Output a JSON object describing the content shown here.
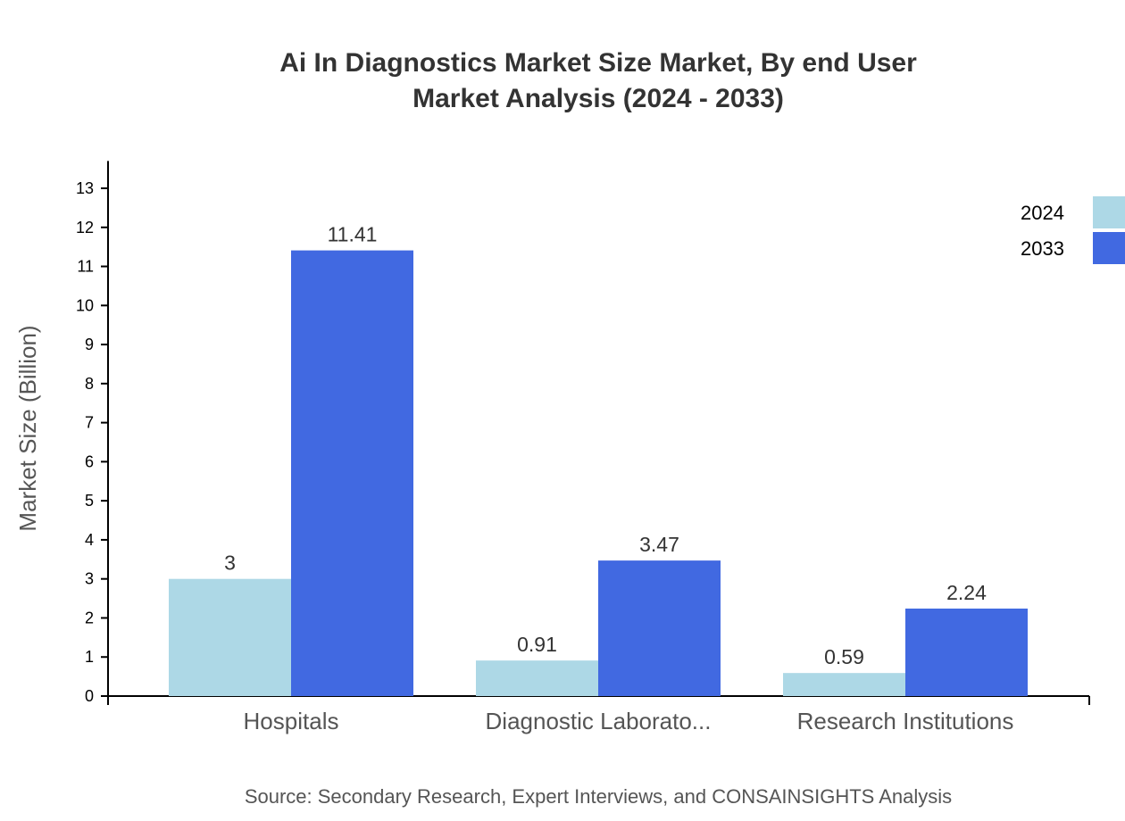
{
  "chart_data": {
    "type": "bar",
    "title": [
      "Ai In Diagnostics Market Size Market, By end User",
      "Market Analysis (2024 - 2033)"
    ],
    "xlabel": "",
    "ylabel": "Market Size (Billion)",
    "categories": [
      "Hospitals",
      "Diagnostic Laborato...",
      "Research Institutions"
    ],
    "series": [
      {
        "name": "2024",
        "color": "#ADD8E6",
        "values": [
          3,
          0.91,
          0.59
        ]
      },
      {
        "name": "2033",
        "color": "#4169E1",
        "values": [
          11.41,
          3.47,
          2.24
        ]
      }
    ],
    "ylim": [
      0,
      13.7
    ],
    "yticks": [
      0,
      1,
      2,
      3,
      4,
      5,
      6,
      7,
      8,
      9,
      10,
      11,
      12,
      13
    ],
    "grid": false,
    "legend_position": "top-right",
    "source": "Source: Secondary Research, Expert Interviews, and CONSAINSIGHTS Analysis"
  }
}
